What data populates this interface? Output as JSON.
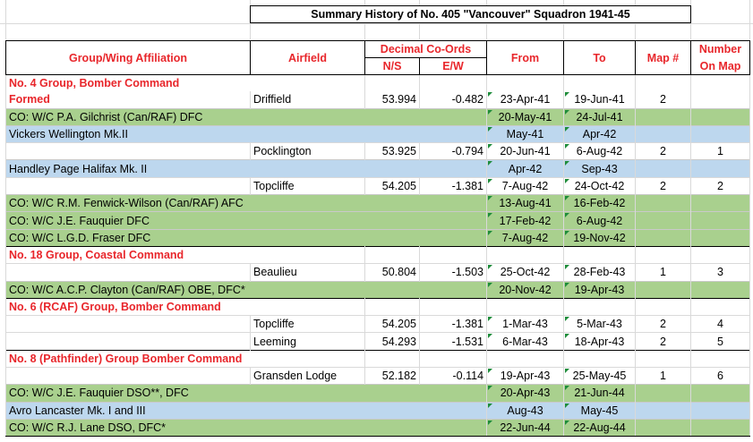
{
  "title": "Summary History of No. 405 \"Vancouver\" Squadron 1941-45",
  "headers": {
    "affiliation": "Group/Wing Affiliation",
    "airfield": "Airfield",
    "decimal": "Decimal Co-Ords",
    "ns": "N/S",
    "ew": "E/W",
    "from": "From",
    "to": "To",
    "map": "Map #",
    "number_line1": "Number",
    "number_line2": "On Map"
  },
  "rows": [
    {
      "type": "grp",
      "text": "No. 4 Group, Bomber Command"
    },
    {
      "type": "formed",
      "label": "Formed",
      "airfield": "Driffield",
      "ns": "53.994",
      "ew": "-0.482",
      "from": "23-Apr-41",
      "to": "19-Jun-41",
      "map": "2",
      "num": ""
    },
    {
      "type": "green",
      "text": "CO: W/C P.A. Gilchrist (Can/RAF) DFC",
      "from": "20-May-41",
      "to": "24-Jul-41"
    },
    {
      "type": "blue",
      "text": "Vickers Wellington Mk.II",
      "from": "May-41",
      "to": "Apr-42"
    },
    {
      "type": "plain",
      "airfield": "Pocklington",
      "ns": "53.925",
      "ew": "-0.794",
      "from": "20-Jun-41",
      "to": "6-Aug-42",
      "map": "2",
      "num": "1"
    },
    {
      "type": "blue",
      "text": "Handley Page Halifax Mk. II",
      "from": "Apr-42",
      "to": "Sep-43"
    },
    {
      "type": "plain",
      "airfield": "Topcliffe",
      "ns": "54.205",
      "ew": "-1.381",
      "from": "7-Aug-42",
      "to": "24-Oct-42",
      "map": "2",
      "num": "2"
    },
    {
      "type": "green",
      "text": "CO: W/C R.M. Fenwick-Wilson (Can/RAF) AFC",
      "from": "13-Aug-41",
      "to": "16-Feb-42"
    },
    {
      "type": "green",
      "text": "CO: W/C J.E. Fauquier DFC",
      "from": "17-Feb-42",
      "to": "6-Aug-42"
    },
    {
      "type": "green",
      "text": "CO: W/C L.G.D. Fraser DFC",
      "from": "7-Aug-42",
      "to": "19-Nov-42"
    },
    {
      "type": "grp",
      "text": "No. 18 Group, Coastal Command"
    },
    {
      "type": "plain",
      "airfield": "Beaulieu",
      "ns": "50.804",
      "ew": "-1.503",
      "from": "25-Oct-42",
      "to": "28-Feb-43",
      "map": "1",
      "num": "3"
    },
    {
      "type": "green",
      "text": "CO: W/C A.C.P. Clayton (Can/RAF) OBE, DFC*",
      "from": "20-Nov-42",
      "to": "19-Apr-43"
    },
    {
      "type": "grp",
      "text": "No. 6 (RCAF) Group, Bomber Command"
    },
    {
      "type": "plain",
      "airfield": "Topcliffe",
      "ns": "54.205",
      "ew": "-1.381",
      "from": "1-Mar-43",
      "to": "5-Mar-43",
      "map": "2",
      "num": "4"
    },
    {
      "type": "plain",
      "airfield": "Leeming",
      "ns": "54.293",
      "ew": "-1.531",
      "from": "6-Mar-43",
      "to": "18-Apr-43",
      "map": "2",
      "num": "5"
    },
    {
      "type": "grp",
      "text": "No. 8 (Pathfinder) Group Bomber Command"
    },
    {
      "type": "plain",
      "airfield": "Gransden Lodge",
      "ns": "52.182",
      "ew": "-0.114",
      "from": "19-Apr-43",
      "to": "25-May-45",
      "map": "1",
      "num": "6"
    },
    {
      "type": "green",
      "text": "CO: W/C J.E. Fauquier DSO**, DFC",
      "from": "20-Apr-43",
      "to": "21-Jun-44"
    },
    {
      "type": "blue",
      "text": "Avro Lancaster Mk. I and III",
      "from": "Aug-43",
      "to": "May-45"
    },
    {
      "type": "green",
      "text": "CO: W/C R.J. Lane DSO, DFC*",
      "from": "22-Jun-44",
      "to": "22-Aug-44"
    }
  ]
}
